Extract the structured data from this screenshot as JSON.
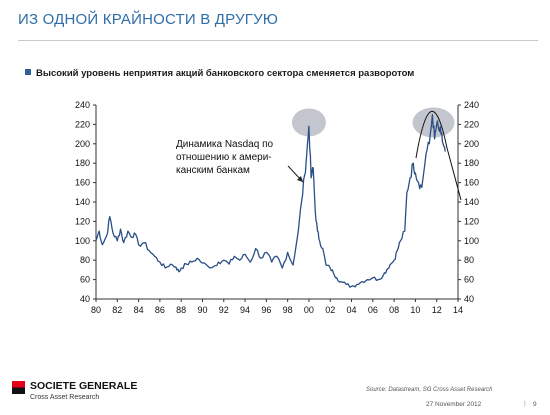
{
  "header": {
    "title": "ИЗ ОДНОЙ КРАЙНОСТИ В ДРУГУЮ"
  },
  "bullet": {
    "text": "Высокий уровень неприятия акций банковского сектора сменяется разворотом"
  },
  "annotation": {
    "lines": [
      "Динамика Nasdaq по",
      "отношению к амери-",
      "канским банкам"
    ]
  },
  "footer": {
    "logo_name": "SOCIETE GENERALE",
    "logo_sub": "Cross Asset Research",
    "source": "Source:  Datastream, SG Cross Asset Research",
    "date": "27 November 2012",
    "page": "9"
  },
  "colors": {
    "title": "#2f6ea8",
    "series": "#2a4f86",
    "highlight": "#b8bcc7",
    "brand_red": "#e2001a"
  },
  "chart_data": {
    "type": "line",
    "title": "",
    "xlabel": "",
    "ylabel": "",
    "xlim": [
      1980,
      2014
    ],
    "ylim": [
      40,
      240
    ],
    "x_ticks": [
      "80",
      "82",
      "84",
      "86",
      "88",
      "90",
      "92",
      "94",
      "96",
      "98",
      "00",
      "02",
      "04",
      "06",
      "08",
      "10",
      "12",
      "14"
    ],
    "y_ticks_left": [
      "240",
      "220",
      "200",
      "180",
      "160",
      "140",
      "120",
      "100",
      "80",
      "60",
      "40"
    ],
    "y_ticks_right": [
      "240",
      "220",
      "200",
      "180",
      "160",
      "140",
      "120",
      "100",
      "80",
      "60",
      "40"
    ],
    "grid": false,
    "series": [
      {
        "x": [
          1980.0,
          1980.3,
          1980.6,
          1981.0,
          1981.3,
          1981.6,
          1982.0,
          1982.3,
          1982.6,
          1983.0,
          1983.3,
          1983.6,
          1984.0,
          1984.5,
          1985.0,
          1985.5,
          1986.0,
          1986.5,
          1987.0,
          1987.5,
          1987.8,
          1988.0,
          1988.5,
          1989.0,
          1989.5,
          1990.0,
          1990.5,
          1991.0,
          1991.5,
          1992.0,
          1992.5,
          1993.0,
          1993.5,
          1994.0,
          1994.5,
          1995.0,
          1995.5,
          1996.0,
          1996.5,
          1997.0,
          1997.5,
          1998.0,
          1998.5,
          1999.0,
          1999.3,
          1999.6,
          1999.8,
          2000.0,
          2000.2,
          2000.4,
          2000.6,
          2000.8,
          2001.0,
          2001.3,
          2001.6,
          2002.0,
          2002.3,
          2002.6,
          2003.0,
          2003.5,
          2004.0,
          2004.5,
          2005.0,
          2005.5,
          2006.0,
          2006.5,
          2007.0,
          2007.3,
          2007.6,
          2008.0,
          2008.3,
          2008.6,
          2009.0,
          2009.2,
          2009.5,
          2009.8,
          2010.0,
          2010.3,
          2010.6,
          2011.0,
          2011.3,
          2011.6,
          2011.8,
          2012.0,
          2012.2,
          2012.4,
          2012.6,
          2012.8
        ],
        "y": [
          100,
          110,
          96,
          105,
          125,
          108,
          100,
          112,
          98,
          110,
          104,
          108,
          96,
          98,
          90,
          84,
          78,
          72,
          76,
          73,
          68,
          72,
          76,
          78,
          82,
          77,
          74,
          73,
          78,
          80,
          76,
          84,
          80,
          86,
          78,
          92,
          82,
          88,
          78,
          84,
          72,
          88,
          75,
          110,
          140,
          168,
          190,
          218,
          165,
          175,
          130,
          110,
          100,
          92,
          75,
          72,
          67,
          62,
          58,
          55,
          53,
          55,
          58,
          60,
          62,
          60,
          65,
          70,
          75,
          80,
          90,
          100,
          110,
          150,
          165,
          180,
          170,
          160,
          155,
          190,
          200,
          230,
          205,
          220,
          215,
          210,
          200,
          192
        ]
      }
    ]
  }
}
